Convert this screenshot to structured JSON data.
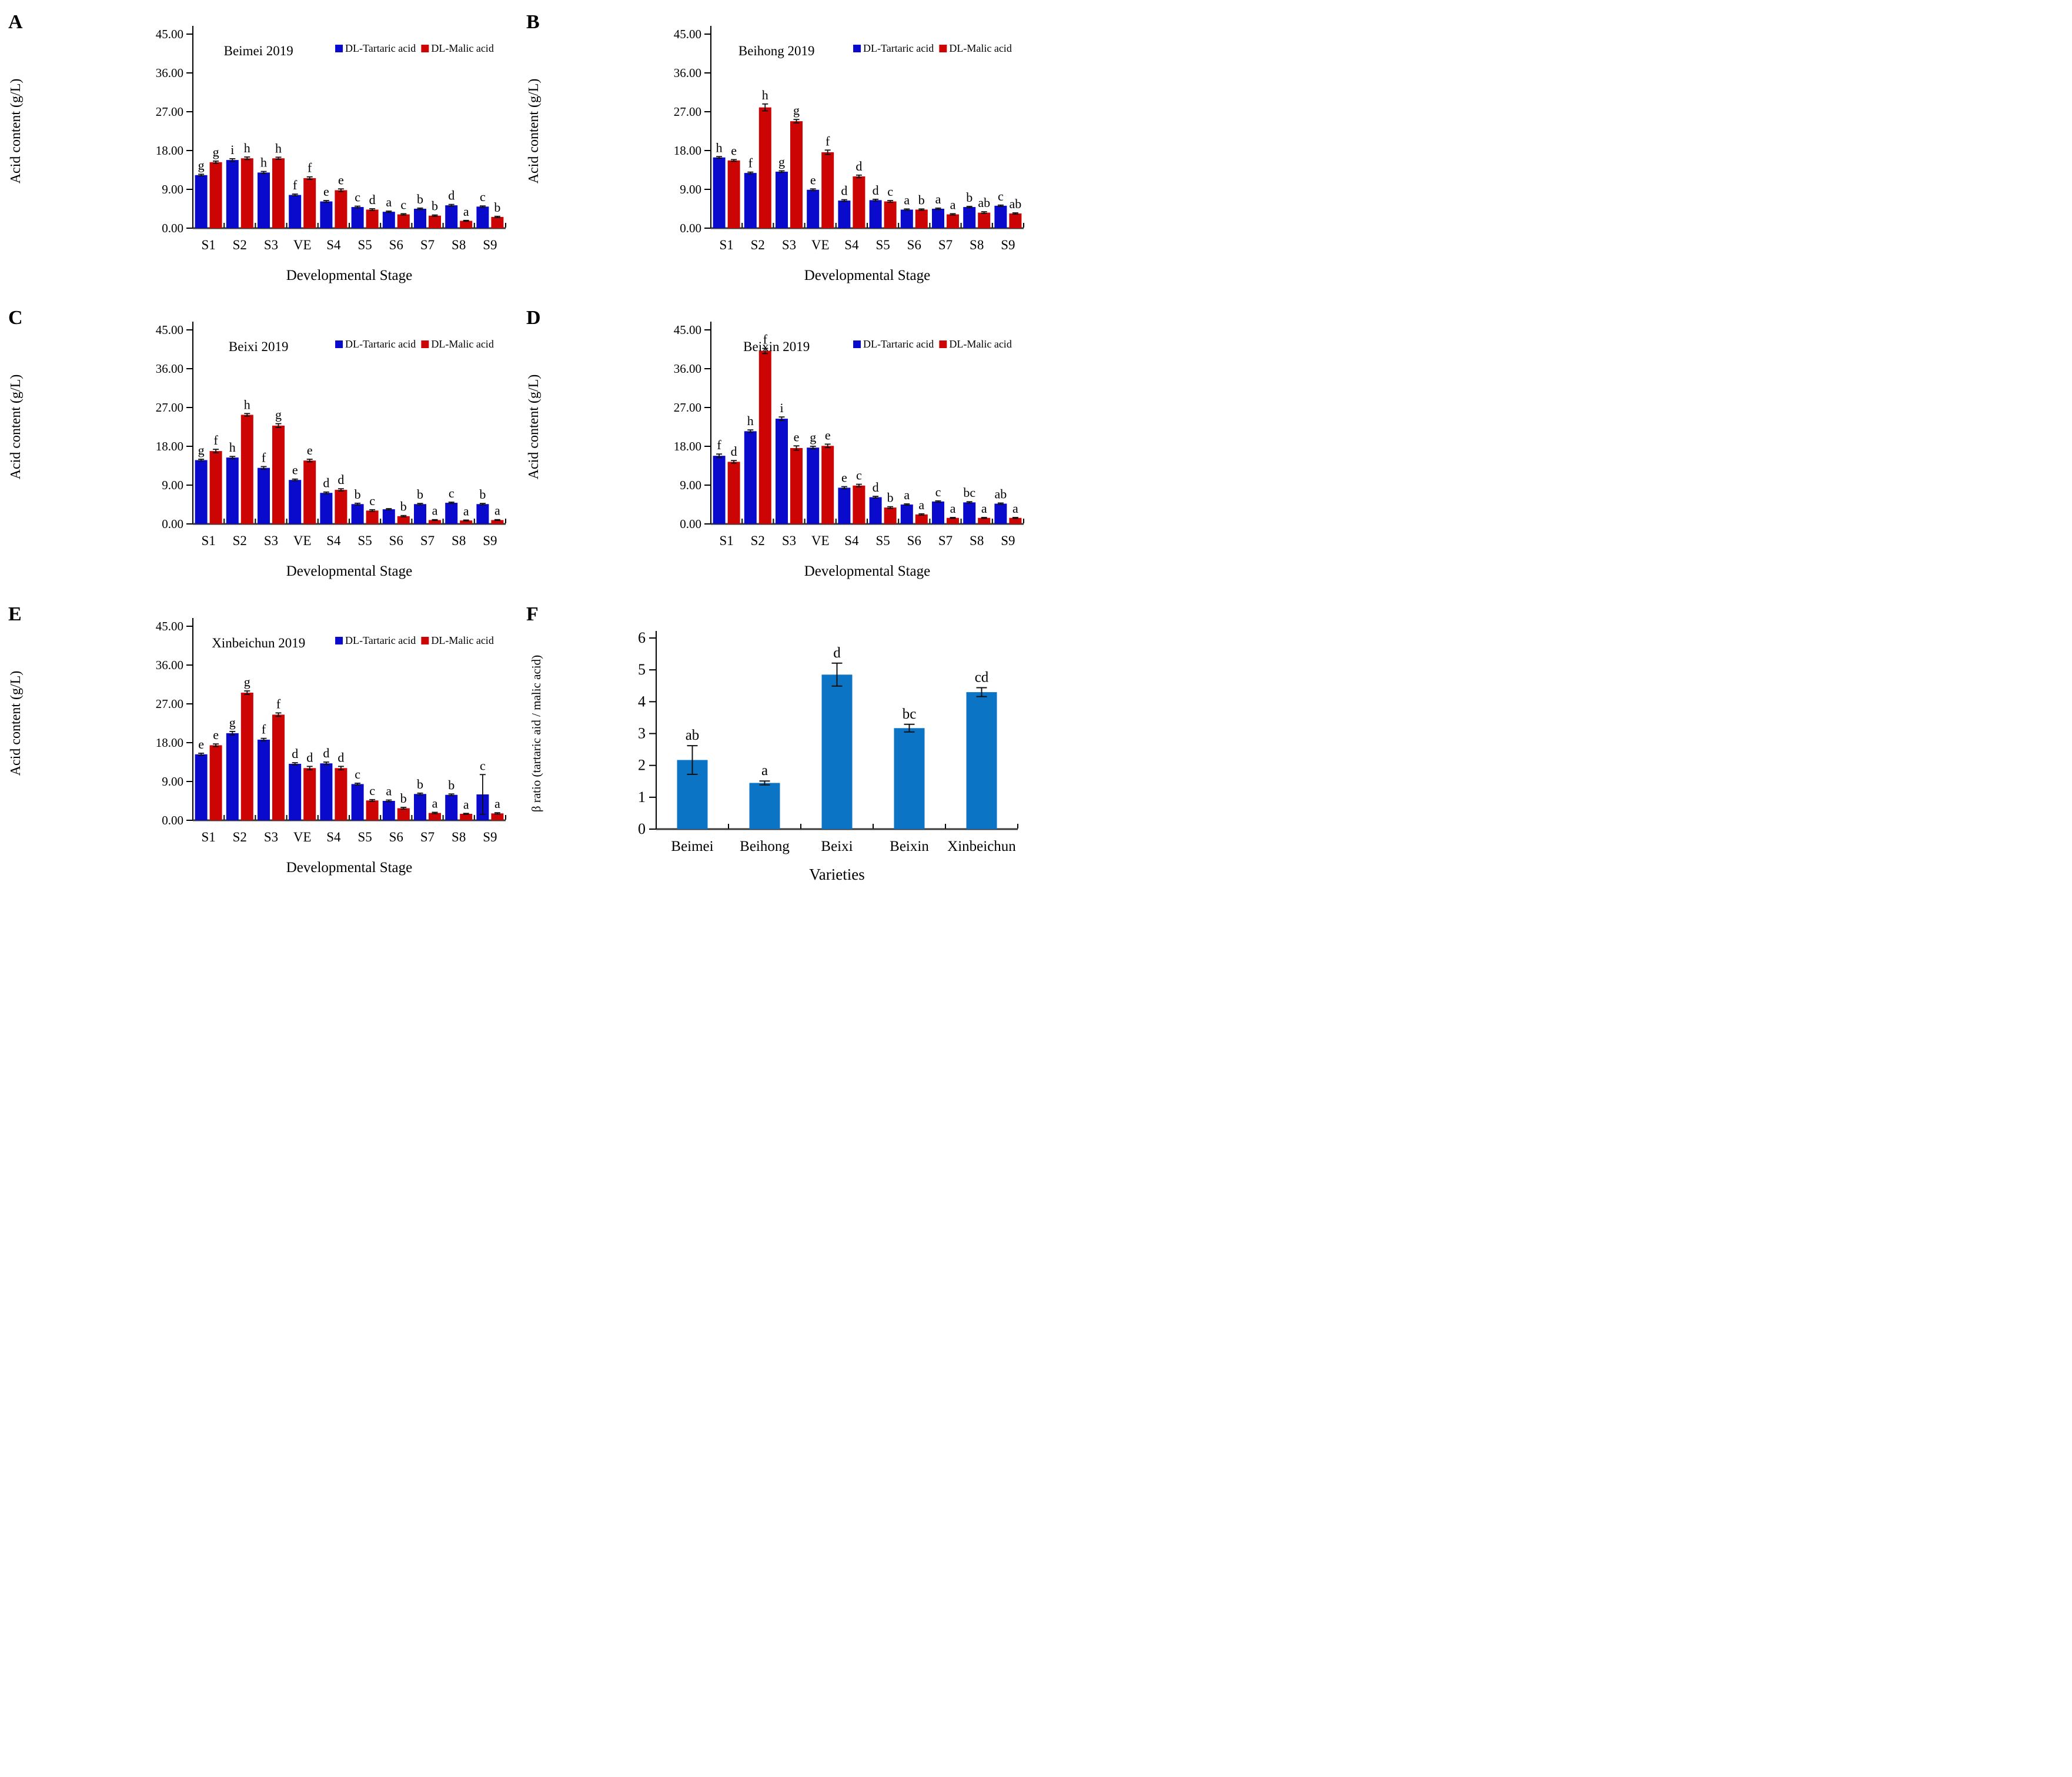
{
  "figure": {
    "legend": {
      "tartaric": "DL-Tartaric acid",
      "malic": "DL-Malic acid"
    },
    "colors": {
      "tartaric": "#0a0acd",
      "malic": "#cc0404",
      "ratio": "#0b74c4",
      "axis": "#3a3a3a"
    }
  },
  "chart_data": [
    {
      "panel": "A",
      "type": "grouped_bar",
      "title": "Beimei 2019",
      "ylabel": "Acid content (g/L)",
      "xlabel": "Developmental Stage",
      "ylim": [
        0,
        45
      ],
      "ytick_values": [
        45,
        36,
        27,
        18,
        9,
        0
      ],
      "ytick_labels": [
        "45.00",
        "36.00",
        "27.00",
        "18.00",
        "9.00",
        "0.00"
      ],
      "categories": [
        "S1",
        "S2",
        "S3",
        "VE",
        "S4",
        "S5",
        "S6",
        "S7",
        "S8",
        "S9"
      ],
      "series": [
        {
          "name": "DL-Tartaric acid",
          "color_key": "tartaric",
          "values": [
            12.3,
            15.8,
            12.9,
            7.7,
            6.2,
            4.9,
            3.8,
            4.5,
            5.3,
            5.0
          ],
          "errors": [
            0.2,
            0.3,
            0.25,
            0.2,
            0.2,
            0.2,
            0.15,
            0.15,
            0.2,
            0.15
          ],
          "letters": [
            "g",
            "i",
            "h",
            "f",
            "e",
            "c",
            "a",
            "b",
            "d",
            "c"
          ]
        },
        {
          "name": "DL-Malic acid",
          "color_key": "malic",
          "values": [
            15.3,
            16.2,
            16.2,
            11.6,
            8.8,
            4.3,
            3.2,
            2.9,
            1.7,
            2.6
          ],
          "errors": [
            0.25,
            0.3,
            0.25,
            0.3,
            0.3,
            0.2,
            0.15,
            0.15,
            0.1,
            0.15
          ],
          "letters": [
            "g",
            "h",
            "h",
            "f",
            "e",
            "d",
            "c",
            "b",
            "a",
            "b"
          ]
        }
      ]
    },
    {
      "panel": "B",
      "type": "grouped_bar",
      "title": "Beihong 2019",
      "ylabel": "Acid content (g/L)",
      "xlabel": "Developmental Stage",
      "ylim": [
        0,
        45
      ],
      "ytick_values": [
        45,
        36,
        27,
        18,
        9,
        0
      ],
      "ytick_labels": [
        "45.00",
        "36.00",
        "27.00",
        "18.00",
        "9.00",
        "0.00"
      ],
      "categories": [
        "S1",
        "S2",
        "S3",
        "VE",
        "S4",
        "S5",
        "S6",
        "S7",
        "S8",
        "S9"
      ],
      "series": [
        {
          "name": "DL-Tartaric acid",
          "color_key": "tartaric",
          "values": [
            16.4,
            12.8,
            13.1,
            8.9,
            6.4,
            6.5,
            4.3,
            4.5,
            4.9,
            5.2
          ],
          "errors": [
            0.2,
            0.2,
            0.2,
            0.2,
            0.2,
            0.2,
            0.15,
            0.15,
            0.15,
            0.15
          ],
          "letters": [
            "h",
            "f",
            "g",
            "e",
            "d",
            "d",
            "a",
            "a",
            "b",
            "c"
          ]
        },
        {
          "name": "DL-Malic acid",
          "color_key": "malic",
          "values": [
            15.7,
            28.0,
            24.8,
            17.6,
            12.0,
            6.2,
            4.3,
            3.2,
            3.6,
            3.4
          ],
          "errors": [
            0.2,
            0.8,
            0.4,
            0.5,
            0.3,
            0.2,
            0.15,
            0.15,
            0.2,
            0.15
          ],
          "letters": [
            "e",
            "h",
            "g",
            "f",
            "d",
            "c",
            "b",
            "a",
            "ab",
            "ab"
          ]
        }
      ]
    },
    {
      "panel": "C",
      "type": "grouped_bar",
      "title": "Beixi 2019",
      "ylabel": "Acid content (g/L)",
      "xlabel": "Developmental Stage",
      "ylim": [
        0,
        45
      ],
      "ytick_values": [
        45,
        36,
        27,
        18,
        9,
        0
      ],
      "ytick_labels": [
        "45.00",
        "36.00",
        "27.00",
        "18.00",
        "9.00",
        "0.00"
      ],
      "categories": [
        "S1",
        "S2",
        "S3",
        "VE",
        "S4",
        "S5",
        "S6",
        "S7",
        "S8",
        "S9"
      ],
      "series": [
        {
          "name": "DL-Tartaric acid",
          "color_key": "tartaric",
          "values": [
            14.8,
            15.4,
            13.0,
            10.2,
            7.2,
            4.6,
            3.4,
            4.6,
            4.9,
            4.6
          ],
          "errors": [
            0.2,
            0.25,
            0.3,
            0.2,
            0.2,
            0.2,
            0.15,
            0.15,
            0.15,
            0.15
          ],
          "letters": [
            "g",
            "h",
            "f",
            "e",
            "d",
            "b",
            "",
            "b",
            "c",
            "b"
          ]
        },
        {
          "name": "DL-Malic acid",
          "color_key": "malic",
          "values": [
            16.9,
            25.3,
            22.8,
            14.7,
            7.9,
            3.1,
            1.8,
            0.9,
            0.8,
            0.9
          ],
          "errors": [
            0.4,
            0.3,
            0.45,
            0.3,
            0.25,
            0.2,
            0.15,
            0.1,
            0.1,
            0.1
          ],
          "letters": [
            "f",
            "h",
            "g",
            "e",
            "d",
            "c",
            "b",
            "a",
            "a",
            "a"
          ]
        }
      ]
    },
    {
      "panel": "D",
      "type": "grouped_bar",
      "title": "Beixin 2019",
      "ylabel": "Acid content (g/L)",
      "xlabel": "Developmental Stage",
      "ylim": [
        0,
        45
      ],
      "ytick_values": [
        45,
        36,
        27,
        18,
        9,
        0
      ],
      "ytick_labels": [
        "45.00",
        "36.00",
        "27.00",
        "18.00",
        "9.00",
        "0.00"
      ],
      "categories": [
        "S1",
        "S2",
        "S3",
        "VE",
        "S4",
        "S5",
        "S6",
        "S7",
        "S8",
        "S9"
      ],
      "series": [
        {
          "name": "DL-Tartaric acid",
          "color_key": "tartaric",
          "values": [
            15.8,
            21.5,
            24.4,
            17.7,
            8.4,
            6.2,
            4.5,
            5.2,
            5.0,
            4.7
          ],
          "errors": [
            0.4,
            0.3,
            0.4,
            0.3,
            0.25,
            0.2,
            0.15,
            0.15,
            0.15,
            0.15
          ],
          "letters": [
            "f",
            "h",
            "i",
            "g",
            "e",
            "d",
            "a",
            "c",
            "bc",
            "ab"
          ]
        },
        {
          "name": "DL-Malic acid",
          "color_key": "malic",
          "values": [
            14.4,
            40.1,
            17.6,
            18.1,
            8.9,
            3.8,
            2.2,
            1.4,
            1.4,
            1.4
          ],
          "errors": [
            0.3,
            0.6,
            0.5,
            0.4,
            0.3,
            0.2,
            0.15,
            0.1,
            0.1,
            0.1
          ],
          "letters": [
            "d",
            "f",
            "e",
            "e",
            "c",
            "b",
            "a",
            "a",
            "a",
            "a"
          ]
        }
      ]
    },
    {
      "panel": "E",
      "type": "grouped_bar",
      "title": "Xinbeichun 2019",
      "ylabel": "Acid content (g/L)",
      "xlabel": "Developmental Stage",
      "ylim": [
        0,
        45
      ],
      "ytick_values": [
        45,
        36,
        27,
        18,
        9,
        0
      ],
      "ytick_labels": [
        "45.00",
        "36.00",
        "27.00",
        "18.00",
        "9.00",
        "0.00"
      ],
      "categories": [
        "S1",
        "S2",
        "S3",
        "VE",
        "S4",
        "S5",
        "S6",
        "S7",
        "S8",
        "S9"
      ],
      "series": [
        {
          "name": "DL-Tartaric acid",
          "color_key": "tartaric",
          "values": [
            15.3,
            20.2,
            18.7,
            13.1,
            13.2,
            8.4,
            4.5,
            6.1,
            5.9,
            6.0
          ],
          "errors": [
            0.25,
            0.4,
            0.3,
            0.25,
            0.3,
            0.2,
            0.2,
            0.2,
            0.2,
            4.6
          ],
          "letters": [
            "e",
            "g",
            "f",
            "d",
            "d",
            "c",
            "a",
            "b",
            "b",
            "c"
          ]
        },
        {
          "name": "DL-Malic acid",
          "color_key": "malic",
          "values": [
            17.4,
            29.6,
            24.5,
            12.1,
            12.1,
            4.6,
            2.8,
            1.7,
            1.5,
            1.6
          ],
          "errors": [
            0.3,
            0.4,
            0.4,
            0.4,
            0.4,
            0.2,
            0.2,
            0.15,
            0.1,
            0.15
          ],
          "letters": [
            "e",
            "g",
            "f",
            "d",
            "d",
            "c",
            "b",
            "a",
            "a",
            "a"
          ]
        }
      ]
    },
    {
      "panel": "F",
      "type": "bar",
      "ylabel": "β ratio (tartaric aid / malic acid)",
      "xlabel": "Varieties",
      "ylim": [
        0,
        6
      ],
      "ytick_values": [
        6,
        5,
        4,
        3,
        2,
        1,
        0
      ],
      "ytick_labels": [
        "6",
        "5",
        "4",
        "3",
        "2",
        "1",
        "0"
      ],
      "categories": [
        "Beimei",
        "Beihong",
        "Beixi",
        "Beixin",
        "Xinbeichun"
      ],
      "values": [
        2.17,
        1.45,
        4.85,
        3.17,
        4.3
      ],
      "errors": [
        0.45,
        0.06,
        0.36,
        0.12,
        0.14
      ],
      "letters": [
        "ab",
        "a",
        "d",
        "bc",
        "cd"
      ]
    }
  ]
}
